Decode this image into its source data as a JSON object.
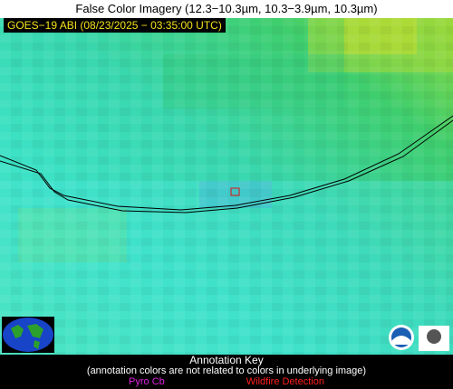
{
  "header": {
    "title": "False Color Imagery (12.3−10.3µm, 10.3−3.9µm, 10.3µm)",
    "timestamp": "GOES−19 ABI (08/23/2025 − 03:35:00 UTC)"
  },
  "annotation_key": {
    "title": "Annotation Key",
    "note": "(annotation colors are not related to colors in underlying image)",
    "items": [
      "Pyro Cb",
      "Wildfire Detection"
    ]
  }
}
